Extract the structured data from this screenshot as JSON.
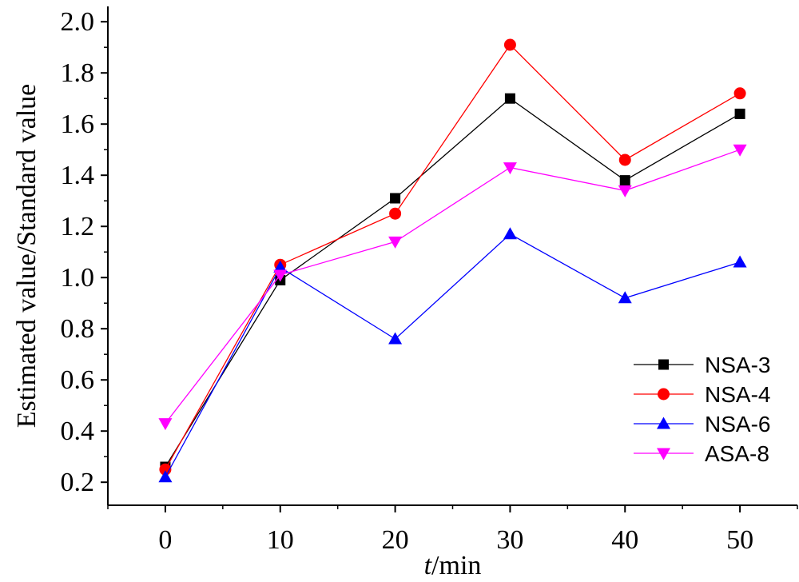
{
  "chart_data": {
    "type": "line",
    "x": [
      0,
      10,
      20,
      30,
      40,
      50
    ],
    "xlim": [
      -5,
      55
    ],
    "ylim": [
      0.11,
      2.06
    ],
    "xticks": [
      "0",
      "10",
      "20",
      "30",
      "40",
      "50"
    ],
    "yticks": [
      "0.2",
      "0.4",
      "0.6",
      "0.8",
      "1.0",
      "1.2",
      "1.4",
      "1.6",
      "1.8",
      "2.0"
    ],
    "xlabel_italic": "t",
    "xlabel_rest": "/min",
    "ylabel": "Estimated value/Standard value",
    "legend_position": "bottom-right",
    "grid": false,
    "series": [
      {
        "name": "NSA-3",
        "color": "#000000",
        "marker": "square",
        "values": [
          0.26,
          0.99,
          1.31,
          1.7,
          1.38,
          1.64
        ]
      },
      {
        "name": "NSA-4",
        "color": "#ff0000",
        "marker": "circle",
        "values": [
          0.25,
          1.05,
          1.25,
          1.91,
          1.46,
          1.72
        ]
      },
      {
        "name": "NSA-6",
        "color": "#0000ff",
        "marker": "triangle-up",
        "values": [
          0.22,
          1.04,
          0.76,
          1.17,
          0.92,
          1.06
        ]
      },
      {
        "name": "ASA-8",
        "color": "#ff00ff",
        "marker": "triangle-down",
        "values": [
          0.43,
          1.01,
          1.14,
          1.43,
          1.34,
          1.5
        ]
      }
    ]
  }
}
